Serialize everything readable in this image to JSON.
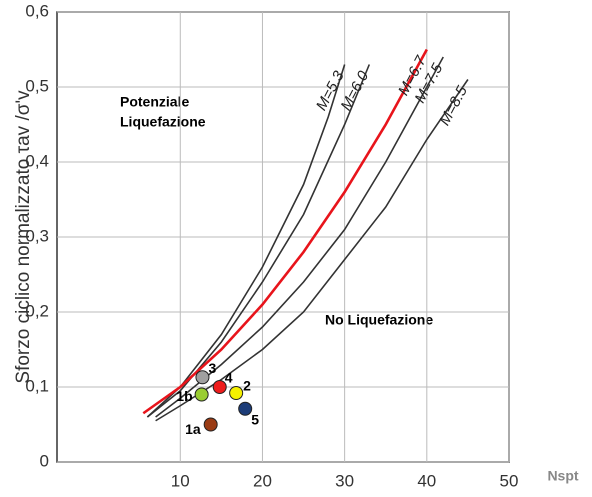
{
  "chart_data": {
    "type": "line",
    "y_label": "Sforzo ciclico normalizzato τav /σ'v",
    "x_label": "Nspt",
    "annotations": [
      "Potenziale",
      "Liquefazione",
      "No Liquefazione"
    ],
    "xlim": [
      -5,
      50
    ],
    "ylim": [
      0,
      0.6
    ],
    "xticks": [
      10,
      20,
      30,
      40,
      50
    ],
    "yticks": [
      0,
      {
        "value": 0.1,
        "label": "0,1"
      },
      {
        "value": 0.2,
        "label": "0,2"
      },
      {
        "value": 0.3,
        "label": "0,3"
      },
      {
        "value": 0.4,
        "label": "0,4"
      },
      {
        "value": 0.5,
        "label": "0,5"
      },
      {
        "value": 0.6,
        "label": "0,6"
      }
    ],
    "grid": true,
    "series": [
      {
        "name": "M=5.3",
        "color": "#333333",
        "x": [
          6,
          10,
          15,
          20,
          25,
          28,
          30
        ],
        "values": [
          0.06,
          0.1,
          0.17,
          0.26,
          0.37,
          0.46,
          0.53
        ]
      },
      {
        "name": "M=6.0",
        "color": "#333333",
        "x": [
          6,
          10,
          15,
          20,
          25,
          30,
          33
        ],
        "values": [
          0.06,
          0.095,
          0.16,
          0.24,
          0.33,
          0.45,
          0.53
        ]
      },
      {
        "name": "M=6.7",
        "color": "#e8141b",
        "x": [
          5.5,
          10,
          15,
          20,
          25,
          30,
          35,
          40
        ],
        "values": [
          0.065,
          0.1,
          0.15,
          0.21,
          0.28,
          0.36,
          0.45,
          0.55
        ]
      },
      {
        "name": "M=7.5",
        "color": "#333333",
        "x": [
          7,
          10,
          15,
          20,
          25,
          30,
          35,
          39,
          42
        ],
        "values": [
          0.06,
          0.085,
          0.13,
          0.18,
          0.24,
          0.31,
          0.4,
          0.48,
          0.54
        ]
      },
      {
        "name": "M=8.5",
        "color": "#333333",
        "x": [
          7,
          10,
          15,
          20,
          25,
          30,
          35,
          40,
          45
        ],
        "values": [
          0.055,
          0.075,
          0.11,
          0.15,
          0.2,
          0.27,
          0.34,
          0.43,
          0.51
        ]
      }
    ],
    "points": [
      {
        "name": "1a",
        "x": 13.7,
        "y": 0.05,
        "color": "#9a3b14"
      },
      {
        "name": "1b",
        "x": 12.6,
        "y": 0.09,
        "color": "#9acd32"
      },
      {
        "name": "3",
        "x": 12.7,
        "y": 0.113,
        "color": "#a0a0a0"
      },
      {
        "name": "4",
        "x": 14.8,
        "y": 0.1,
        "color": "#ee1c1c"
      },
      {
        "name": "2",
        "x": 16.8,
        "y": 0.092,
        "color": "#f5f000"
      },
      {
        "name": "5",
        "x": 17.9,
        "y": 0.071,
        "color": "#1c3c78"
      }
    ]
  }
}
